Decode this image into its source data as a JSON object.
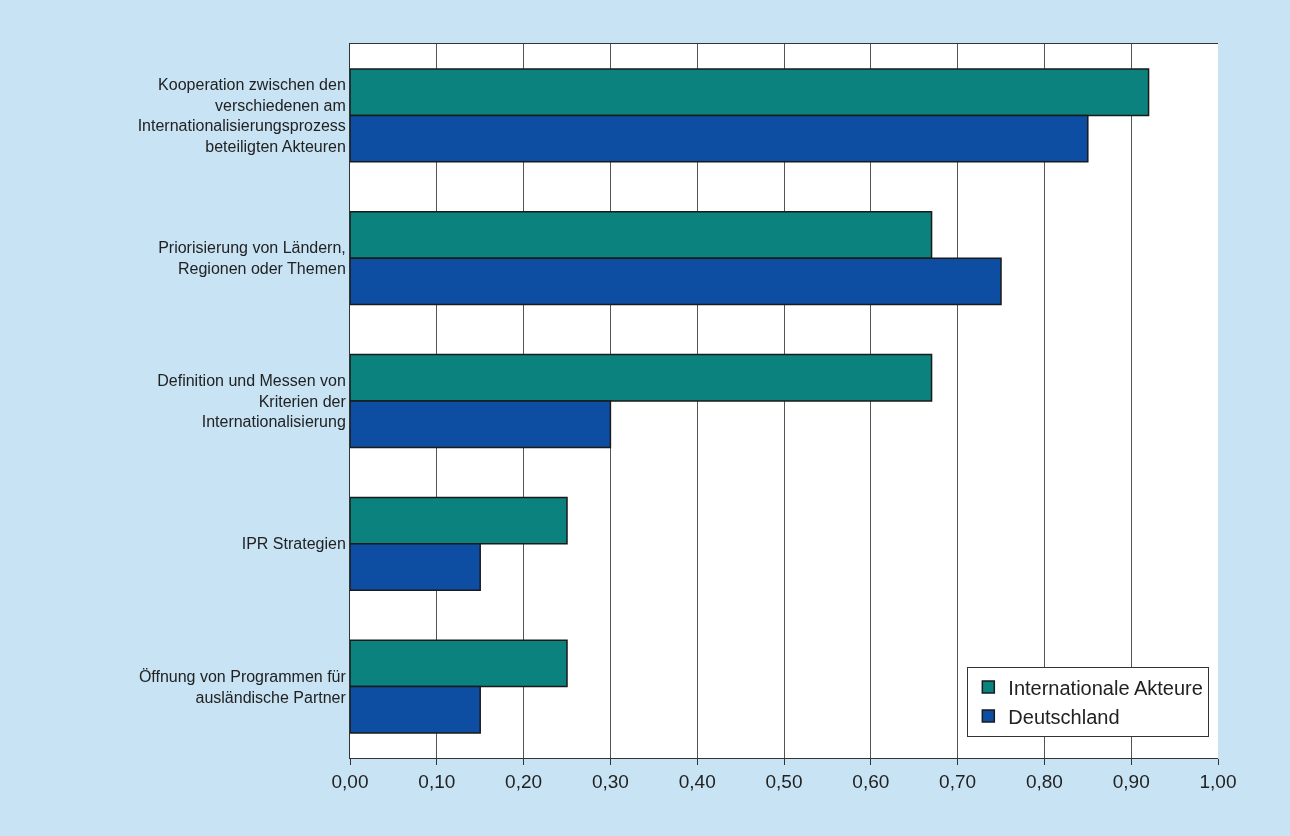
{
  "chart_data": {
    "type": "bar",
    "orientation": "horizontal",
    "categories": [
      "Kooperation zwischen den\nverschiedenen am\nInternationalisierungsprozess\nbeteiligten Akteuren",
      "Priorisierung von Ländern,\nRegionen oder Themen",
      "Definition und Messen von\nKriterien der\nInternationalisierung",
      "IPR Strategien",
      "Öffnung von Programmen für\nausländische Partner"
    ],
    "series": [
      {
        "name": "Internationale Akteure",
        "color": "#0b827e",
        "values": [
          0.92,
          0.67,
          0.67,
          0.25,
          0.25
        ]
      },
      {
        "name": "Deutschland",
        "color": "#0d4ea3",
        "values": [
          0.85,
          0.75,
          0.3,
          0.15,
          0.15
        ]
      }
    ],
    "xlim": [
      0,
      1
    ],
    "xticks": [
      {
        "value": 0,
        "label": "0,00"
      },
      {
        "value": 0.1,
        "label": "0,10"
      },
      {
        "value": 0.2,
        "label": "0,20"
      },
      {
        "value": 0.3,
        "label": "0,30"
      },
      {
        "value": 0.4,
        "label": "0,40"
      },
      {
        "value": 0.5,
        "label": "0,50"
      },
      {
        "value": 0.6,
        "label": "0,60"
      },
      {
        "value": 0.7,
        "label": "0,70"
      },
      {
        "value": 0.8,
        "label": "0,80"
      },
      {
        "value": 0.9,
        "label": "0,90"
      },
      {
        "value": 1,
        "label": "1,00"
      }
    ],
    "grid": "x",
    "legend": "bottom right"
  }
}
